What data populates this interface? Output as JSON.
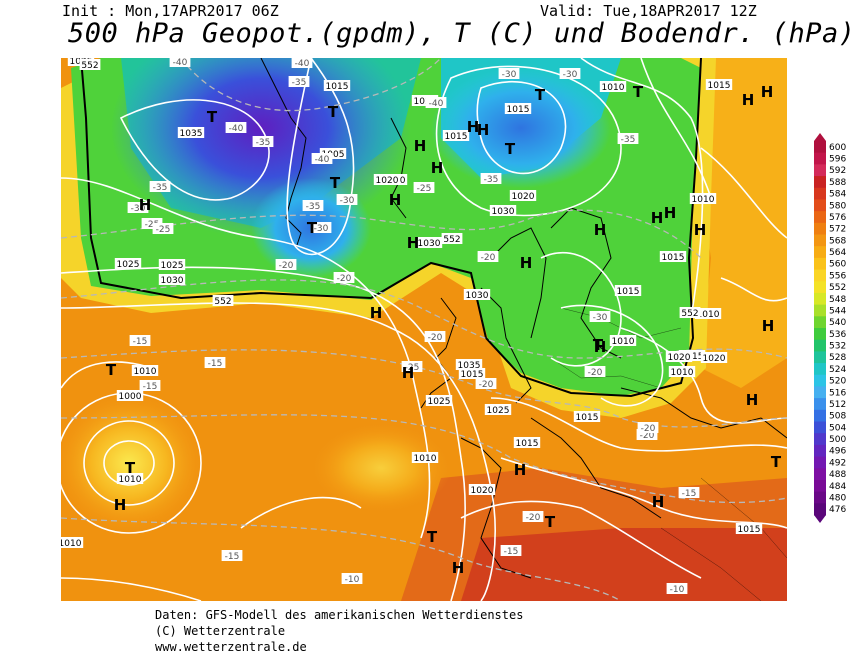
{
  "header": {
    "init": "Init : Mon,17APR2017 06Z",
    "valid": "Valid: Tue,18APR2017 12Z",
    "title": "500 hPa Geopot.(gpdm), T (C) und Bodendr. (hPa)"
  },
  "legend": {
    "values": [
      "600",
      "596",
      "592",
      "588",
      "584",
      "580",
      "576",
      "572",
      "568",
      "564",
      "560",
      "556",
      "552",
      "548",
      "544",
      "540",
      "536",
      "532",
      "528",
      "524",
      "520",
      "516",
      "512",
      "508",
      "504",
      "500",
      "496",
      "492",
      "488",
      "484",
      "480",
      "476"
    ],
    "colors": [
      "#b0103e",
      "#c2154a",
      "#d42a5a",
      "#c92222",
      "#d8371e",
      "#e34d1a",
      "#ea6614",
      "#ef7f10",
      "#f39612",
      "#f7ac14",
      "#fac21a",
      "#fad526",
      "#f4e227",
      "#d7e827",
      "#a9e02a",
      "#6fd52f",
      "#3fcc3d",
      "#22c46a",
      "#1ec49b",
      "#1fc6c7",
      "#2cc4e6",
      "#46b0f0",
      "#3a90ec",
      "#3470e4",
      "#3c50d8",
      "#5038cc",
      "#6226c0",
      "#7318b2",
      "#7e10a4",
      "#790a96",
      "#6a0887",
      "#5a067a"
    ]
  },
  "map": {
    "highs": 23,
    "lows": 13,
    "isobars": [
      "1000",
      "1005",
      "1005",
      "1005",
      "1005",
      "1010",
      "1010",
      "1010",
      "1010",
      "1010",
      "1010",
      "1010",
      "1010",
      "1010",
      "1010",
      "1010",
      "1015",
      "1015",
      "1015",
      "1015",
      "1015",
      "1015",
      "1015",
      "1015",
      "1015",
      "1015",
      "1015",
      "1020",
      "1020",
      "1020",
      "1020",
      "1020",
      "1020",
      "1020",
      "1025",
      "1025",
      "1025",
      "1025",
      "1025",
      "1030",
      "1030",
      "1030",
      "1030",
      "1030",
      "1035",
      "1035"
    ],
    "temps": [
      "-40",
      "-40",
      "-40",
      "-40",
      "-40",
      "-40",
      "-35",
      "-35",
      "-35",
      "-35",
      "-35",
      "-35",
      "-30",
      "-30",
      "-30",
      "-30",
      "-30",
      "-30",
      "-25",
      "-25",
      "-25",
      "-25",
      "-20",
      "-20",
      "-20",
      "-20",
      "-20",
      "-20",
      "-20",
      "-20",
      "-20",
      "-15",
      "-15",
      "-15",
      "-15",
      "-15",
      "-15",
      "-10",
      "-10"
    ],
    "heights": [
      "552",
      "552",
      "552",
      "552"
    ]
  },
  "footer": {
    "line1": "Daten: GFS-Modell des amerikanischen Wetterdienstes",
    "line2": "(C) Wetterzentrale",
    "line3": "www.wetterzentrale.de"
  }
}
